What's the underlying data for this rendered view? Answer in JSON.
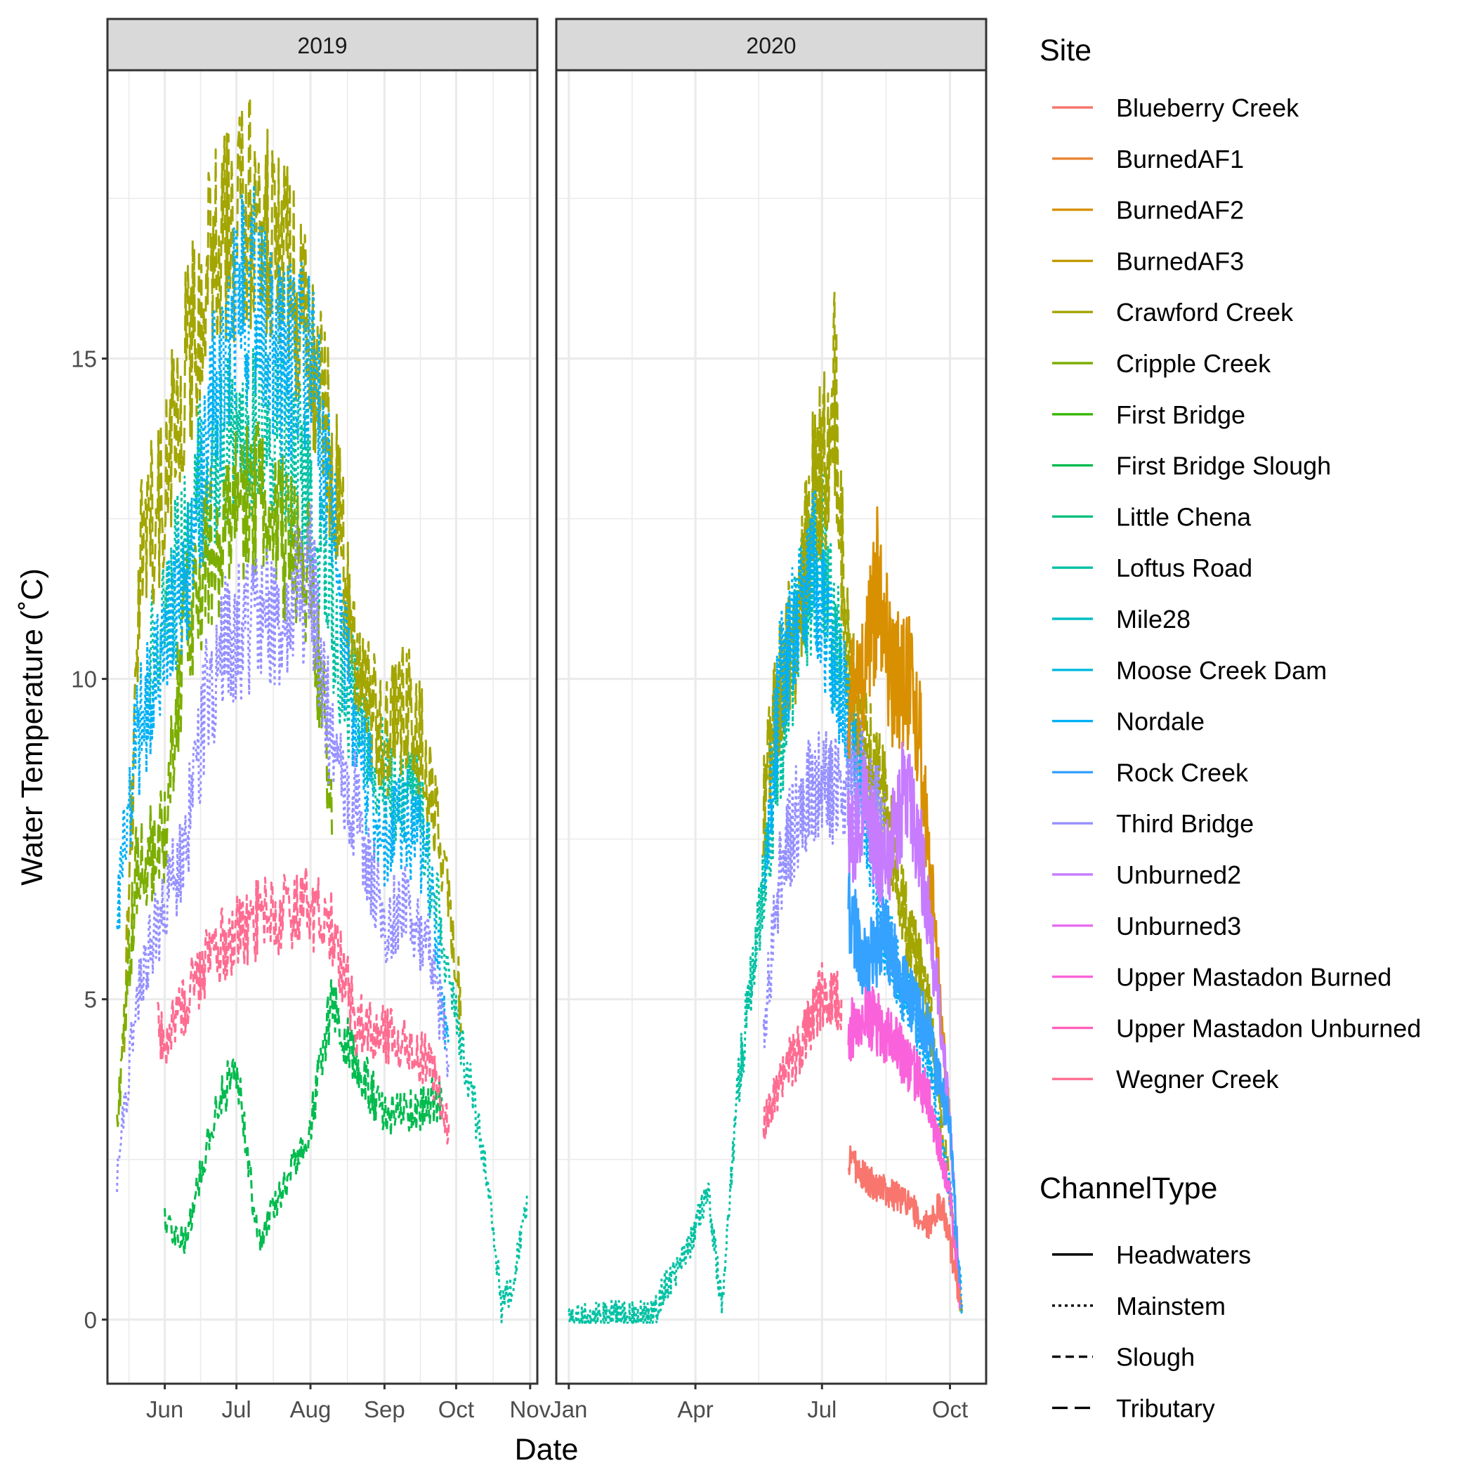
{
  "chart_data": {
    "type": "line",
    "facet_variable": "year",
    "ylabel": "Water Temperature (˚C)",
    "xlabel": "Date",
    "ylim": [
      -1,
      19.5
    ],
    "y_ticks": [
      0,
      5,
      10,
      15
    ],
    "facets": [
      {
        "label": "2019",
        "xlim": [
          "2019-05-08",
          "2019-11-04"
        ],
        "x_ticks": [
          {
            "label": "Jun",
            "date": "2019-06-01"
          },
          {
            "label": "Jul",
            "date": "2019-07-01"
          },
          {
            "label": "Aug",
            "date": "2019-08-01"
          },
          {
            "label": "Sep",
            "date": "2019-09-01"
          },
          {
            "label": "Oct",
            "date": "2019-10-01"
          },
          {
            "label": "Nov",
            "date": "2019-11-01"
          }
        ]
      },
      {
        "label": "2020",
        "xlim": [
          "2019-12-23",
          "2020-10-27"
        ],
        "x_ticks": [
          {
            "label": "Jan",
            "date": "2020-01-01"
          },
          {
            "label": "Apr",
            "date": "2020-04-01"
          },
          {
            "label": "Jul",
            "date": "2020-07-01"
          },
          {
            "label": "Oct",
            "date": "2020-10-01"
          }
        ]
      }
    ],
    "legend": {
      "position": "right",
      "site_title": "Site",
      "channel_title": "ChannelType",
      "sites": [
        {
          "name": "Blueberry Creek",
          "color": "#F8766D"
        },
        {
          "name": "BurnedAF1",
          "color": "#EA8331"
        },
        {
          "name": "BurnedAF2",
          "color": "#D89000"
        },
        {
          "name": "BurnedAF3",
          "color": "#C09B00"
        },
        {
          "name": "Crawford Creek",
          "color": "#A3A500"
        },
        {
          "name": "Cripple Creek",
          "color": "#7CAE00"
        },
        {
          "name": "First Bridge",
          "color": "#39B600"
        },
        {
          "name": "First Bridge Slough",
          "color": "#00BB4E"
        },
        {
          "name": "Little Chena",
          "color": "#00BF7D"
        },
        {
          "name": "Loftus Road",
          "color": "#00C1A3"
        },
        {
          "name": "Mile28",
          "color": "#00BFC4"
        },
        {
          "name": "Moose Creek Dam",
          "color": "#00BAE0"
        },
        {
          "name": "Nordale",
          "color": "#00B0F6"
        },
        {
          "name": "Rock Creek",
          "color": "#35A2FF"
        },
        {
          "name": "Third Bridge",
          "color": "#9590FF"
        },
        {
          "name": "Unburned2",
          "color": "#C77CFF"
        },
        {
          "name": "Unburned3",
          "color": "#E76BF3"
        },
        {
          "name": "Upper Mastadon Burned",
          "color": "#FA62DB"
        },
        {
          "name": "Upper Mastadon Unburned",
          "color": "#FF62BC"
        },
        {
          "name": "Wegner Creek",
          "color": "#FF6C91"
        }
      ],
      "channel_types": [
        {
          "name": "Headwaters",
          "dash": "solid"
        },
        {
          "name": "Mainstem",
          "dash": "dotted"
        },
        {
          "name": "Slough",
          "dash": "dashed"
        },
        {
          "name": "Tributary",
          "dash": "longdash"
        }
      ]
    },
    "series": [
      {
        "name": "Loftus Road",
        "facet": "2019",
        "channel": "Mainstem",
        "color": "#00C1A3",
        "x": [
          "2019-05-25",
          "2019-06-01",
          "2019-06-15",
          "2019-07-01",
          "2019-07-15",
          "2019-08-01",
          "2019-08-15",
          "2019-09-01",
          "2019-09-15",
          "2019-09-25",
          "2019-10-05",
          "2019-10-15",
          "2019-10-20",
          "2019-10-25",
          "2019-10-31"
        ],
        "values": [
          10.5,
          11,
          13,
          14,
          14,
          13,
          10,
          8.5,
          8,
          6,
          4,
          2,
          0.2,
          0.6,
          1.9
        ]
      },
      {
        "name": "Crawford Creek",
        "facet": "2019",
        "channel": "Tributary",
        "color": "#A3A500",
        "x": [
          "2019-05-15",
          "2019-05-22",
          "2019-06-01",
          "2019-06-10",
          "2019-06-20",
          "2019-07-01",
          "2019-07-10",
          "2019-07-20",
          "2019-08-01",
          "2019-08-10",
          "2019-08-20",
          "2019-09-01",
          "2019-09-10",
          "2019-09-20",
          "2019-09-28",
          "2019-10-03"
        ],
        "values": [
          4.5,
          12,
          13,
          15,
          16.5,
          17,
          17.5,
          16.8,
          15,
          13.5,
          10,
          9,
          9.6,
          8.5,
          6.5,
          5
        ]
      },
      {
        "name": "Cripple Creek",
        "facet": "2019",
        "channel": "Tributary",
        "color": "#7CAE00",
        "x": [
          "2019-05-12",
          "2019-05-20",
          "2019-06-01",
          "2019-06-10",
          "2019-06-20",
          "2019-07-01",
          "2019-07-10",
          "2019-07-20",
          "2019-08-01",
          "2019-08-10"
        ],
        "values": [
          3,
          7,
          7.5,
          11,
          12,
          12.5,
          12.7,
          12.2,
          11.5,
          8
        ]
      },
      {
        "name": "First Bridge Slough",
        "facet": "2019",
        "channel": "Slough",
        "color": "#00BB4E",
        "x": [
          "2019-06-01",
          "2019-06-10",
          "2019-06-20",
          "2019-07-01",
          "2019-07-10",
          "2019-07-20",
          "2019-08-01",
          "2019-08-10",
          "2019-08-20",
          "2019-09-01",
          "2019-09-15",
          "2019-09-25"
        ],
        "values": [
          1.5,
          1.2,
          3,
          4,
          1.2,
          2,
          3,
          5,
          4,
          3.2,
          3.3,
          3.5
        ]
      },
      {
        "name": "Nordale",
        "facet": "2019",
        "channel": "Mainstem",
        "color": "#00B0F6",
        "x": [
          "2019-05-12",
          "2019-05-20",
          "2019-06-01",
          "2019-06-10",
          "2019-06-20",
          "2019-07-01",
          "2019-07-10",
          "2019-07-20",
          "2019-08-01",
          "2019-08-10",
          "2019-08-20",
          "2019-09-01",
          "2019-09-10",
          "2019-09-20",
          "2019-09-28"
        ],
        "values": [
          6.5,
          9,
          10.5,
          11.5,
          14,
          16,
          16,
          15,
          15,
          12.5,
          9,
          7.5,
          7.8,
          7,
          4
        ]
      },
      {
        "name": "Third Bridge",
        "facet": "2019",
        "channel": "Mainstem",
        "color": "#9590FF",
        "x": [
          "2019-05-12",
          "2019-05-20",
          "2019-06-01",
          "2019-06-10",
          "2019-06-20",
          "2019-07-01",
          "2019-07-10",
          "2019-07-20",
          "2019-08-01",
          "2019-08-10",
          "2019-08-20",
          "2019-09-01",
          "2019-09-10",
          "2019-09-20",
          "2019-09-28"
        ],
        "values": [
          2.2,
          5,
          6.5,
          7.5,
          10,
          10.8,
          11,
          11,
          11.5,
          9,
          8,
          6.2,
          6.5,
          5.8,
          4
        ]
      },
      {
        "name": "Wegner Creek",
        "facet": "2019",
        "channel": "Slough",
        "color": "#FF6C91",
        "x": [
          "2019-05-29",
          "2019-06-01",
          "2019-06-10",
          "2019-06-20",
          "2019-07-01",
          "2019-07-10",
          "2019-07-20",
          "2019-08-01",
          "2019-08-10",
          "2019-08-20",
          "2019-09-01",
          "2019-09-10",
          "2019-09-20",
          "2019-09-28"
        ],
        "values": [
          4.5,
          4.2,
          5,
          5.8,
          6,
          6.2,
          6.3,
          6.4,
          6.2,
          4.6,
          4.5,
          4.3,
          4,
          3
        ]
      },
      {
        "name": "Loftus Road",
        "facet": "2020",
        "channel": "Mainstem",
        "color": "#00C1A3",
        "x": [
          "2020-01-01",
          "2020-02-01",
          "2020-03-01",
          "2020-03-10",
          "2020-03-25",
          "2020-04-10",
          "2020-04-20",
          "2020-05-01",
          "2020-05-15",
          "2020-06-01",
          "2020-06-15",
          "2020-07-01",
          "2020-07-15"
        ],
        "values": [
          0,
          0.05,
          0.05,
          0.5,
          1,
          2,
          0.2,
          3.5,
          6,
          9,
          11,
          12,
          10
        ]
      },
      {
        "name": "Crawford Creek",
        "facet": "2020",
        "channel": "Tributary",
        "color": "#A3A500",
        "x": [
          "2020-05-20",
          "2020-06-01",
          "2020-06-15",
          "2020-06-25",
          "2020-07-05",
          "2020-07-10",
          "2020-07-20",
          "2020-08-01",
          "2020-08-15",
          "2020-09-01",
          "2020-09-15",
          "2020-10-01",
          "2020-10-10"
        ],
        "values": [
          8,
          10,
          11,
          13,
          13.5,
          14.5,
          10,
          9,
          8,
          6,
          5,
          2,
          0
        ]
      },
      {
        "name": "Nordale",
        "facet": "2020",
        "channel": "Mainstem",
        "color": "#00B0F6",
        "x": [
          "2020-05-20",
          "2020-06-01",
          "2020-06-15",
          "2020-06-25",
          "2020-07-05",
          "2020-07-15",
          "2020-08-01",
          "2020-08-15",
          "2020-09-01",
          "2020-09-15",
          "2020-10-01",
          "2020-10-10"
        ],
        "values": [
          7,
          10,
          11,
          12,
          10.5,
          10,
          8,
          6,
          5,
          4,
          2,
          0.2
        ]
      },
      {
        "name": "Third Bridge",
        "facet": "2020",
        "channel": "Mainstem",
        "color": "#9590FF",
        "x": [
          "2020-05-20",
          "2020-06-01",
          "2020-06-15",
          "2020-07-01",
          "2020-07-15",
          "2020-08-01",
          "2020-08-15"
        ],
        "values": [
          4.5,
          7,
          8,
          8.5,
          8.2,
          8.5,
          7.5
        ]
      },
      {
        "name": "BurnedAF2",
        "facet": "2020",
        "channel": "Headwaters",
        "color": "#D89000",
        "x": [
          "2020-07-20",
          "2020-08-01",
          "2020-08-10",
          "2020-08-20",
          "2020-09-01",
          "2020-09-10",
          "2020-09-20",
          "2020-10-01"
        ],
        "values": [
          9.5,
          10,
          11.5,
          10,
          10,
          9,
          6,
          3
        ]
      },
      {
        "name": "Unburned2",
        "facet": "2020",
        "channel": "Headwaters",
        "color": "#C77CFF",
        "x": [
          "2020-07-20",
          "2020-08-01",
          "2020-08-15",
          "2020-09-01",
          "2020-09-15",
          "2020-09-25",
          "2020-10-01",
          "2020-10-08"
        ],
        "values": [
          7.5,
          8,
          7,
          8.5,
          6.5,
          4.5,
          3,
          0.5
        ]
      },
      {
        "name": "Rock Creek",
        "facet": "2020",
        "channel": "Headwaters",
        "color": "#35A2FF",
        "x": [
          "2020-07-20",
          "2020-08-01",
          "2020-08-15",
          "2020-09-01",
          "2020-09-15",
          "2020-10-01",
          "2020-10-08"
        ],
        "values": [
          6.5,
          5.5,
          6,
          5,
          4.5,
          3,
          0.5
        ]
      },
      {
        "name": "Upper Mastadon Burned",
        "facet": "2020",
        "channel": "Headwaters",
        "color": "#FA62DB",
        "x": [
          "2020-07-20",
          "2020-08-01",
          "2020-08-15",
          "2020-09-01",
          "2020-09-15",
          "2020-10-01",
          "2020-10-08"
        ],
        "values": [
          4.5,
          4.8,
          4.5,
          4,
          3.5,
          2,
          0.3
        ]
      },
      {
        "name": "Wegner Creek",
        "facet": "2020",
        "channel": "Slough",
        "color": "#FF6C91",
        "x": [
          "2020-05-20",
          "2020-06-01",
          "2020-06-15",
          "2020-06-25",
          "2020-07-05",
          "2020-07-15"
        ],
        "values": [
          3,
          3.8,
          4.2,
          4.8,
          5.2,
          4.8
        ]
      },
      {
        "name": "Blueberry Creek",
        "facet": "2020",
        "channel": "Headwaters",
        "color": "#F8766D",
        "x": [
          "2020-07-20",
          "2020-08-01",
          "2020-08-15",
          "2020-09-01",
          "2020-09-15",
          "2020-09-25",
          "2020-10-01",
          "2020-10-08"
        ],
        "values": [
          2.5,
          2.2,
          2,
          1.8,
          1.5,
          1.8,
          1.2,
          0.3
        ]
      }
    ]
  }
}
